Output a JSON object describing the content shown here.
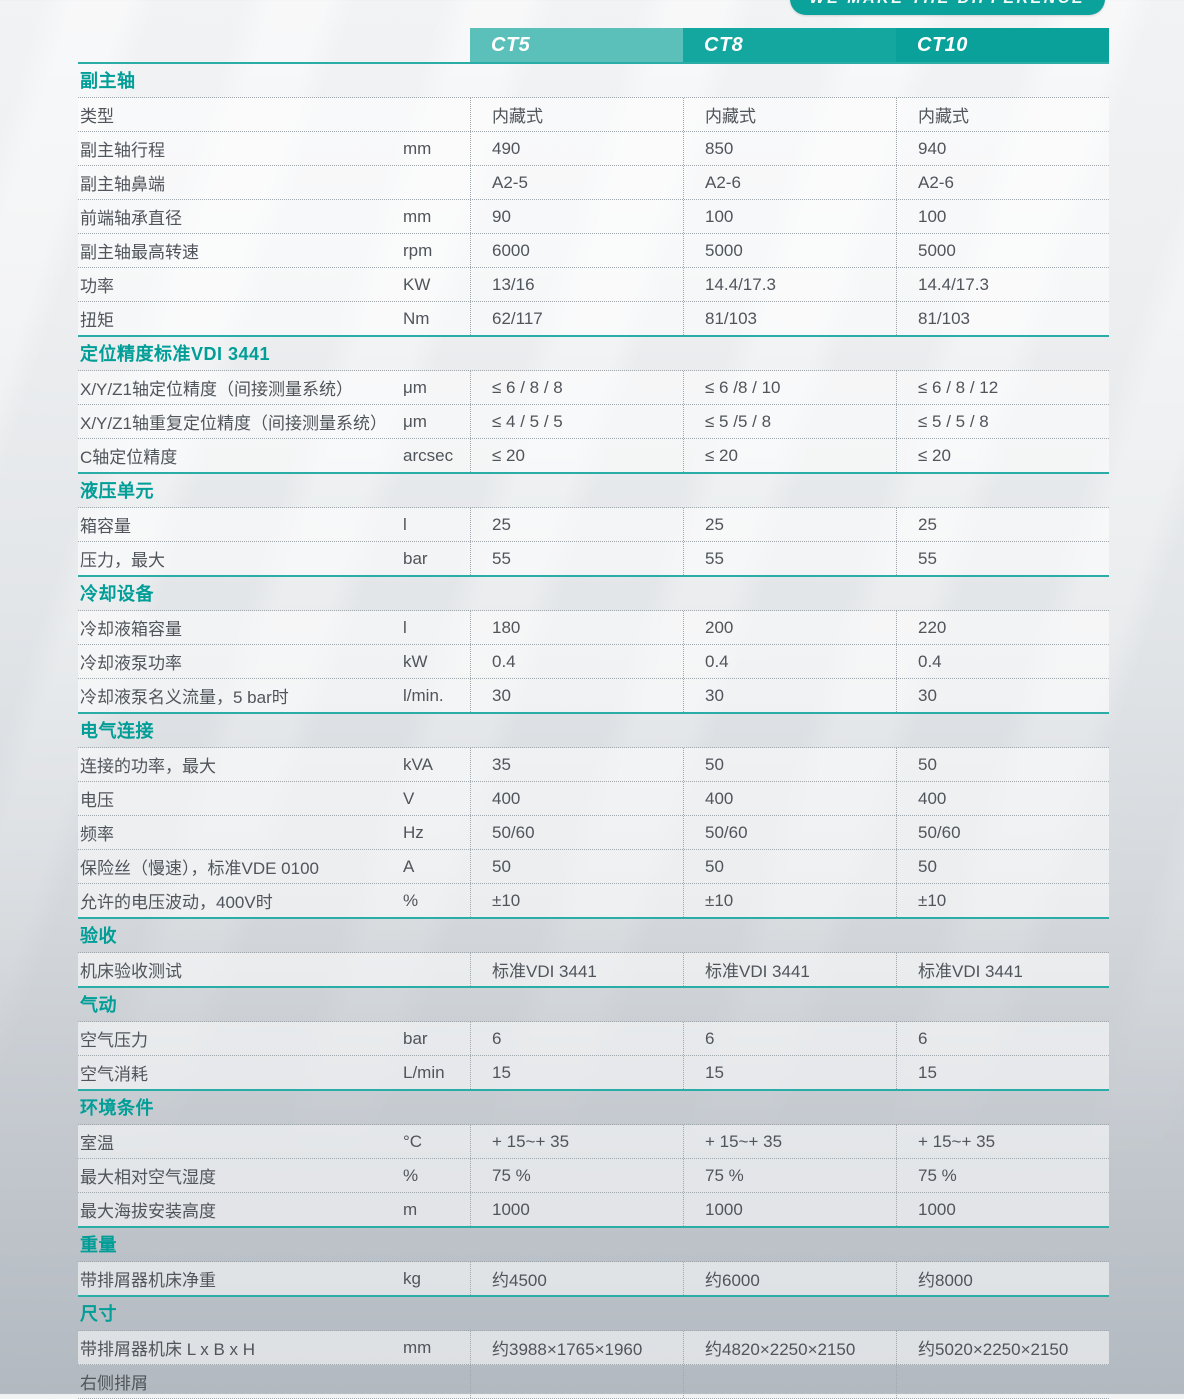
{
  "badge": {
    "label": "WE MAKE THE DIFFERENCE"
  },
  "columns": [
    "CT5",
    "CT8",
    "CT10"
  ],
  "colors": {
    "accent_teal": "#09a19a",
    "accent_teal_light": "#5bc0b9",
    "section_line": "#2aada6",
    "title_text": "#009e97",
    "body_text": "#50555b"
  },
  "sections": [
    {
      "title": "副主轴",
      "rows": [
        {
          "label": "类型",
          "unit": "",
          "values": [
            "内藏式",
            "内藏式",
            "内藏式"
          ]
        },
        {
          "label": "副主轴行程",
          "unit": "mm",
          "values": [
            "490",
            "850",
            "940"
          ]
        },
        {
          "label": "副主轴鼻端",
          "unit": "",
          "values": [
            "A2-5",
            "A2-6",
            "A2-6"
          ]
        },
        {
          "label": "前端轴承直径",
          "unit": "mm",
          "values": [
            "90",
            "100",
            "100"
          ]
        },
        {
          "label": "副主轴最高转速",
          "unit": "rpm",
          "values": [
            "6000",
            "5000",
            "5000"
          ]
        },
        {
          "label": "功率",
          "unit": "KW",
          "values": [
            "13/16",
            "14.4/17.3",
            "14.4/17.3"
          ]
        },
        {
          "label": "扭矩",
          "unit": "Nm",
          "values": [
            "62/117",
            "81/103",
            "81/103"
          ]
        }
      ]
    },
    {
      "title": "定位精度标准VDI 3441",
      "rows": [
        {
          "label": "X/Y/Z1轴定位精度（间接测量系统）",
          "unit": "μm",
          "values": [
            "≤ 6 / 8 / 8",
            "≤ 6 /8 / 10",
            "≤ 6 / 8 / 12"
          ]
        },
        {
          "label": "X/Y/Z1轴重复定位精度（间接测量系统）",
          "unit": "μm",
          "values": [
            "≤ 4 / 5 / 5",
            "≤ 5 /5 / 8",
            "≤ 5 / 5 / 8"
          ]
        },
        {
          "label": "C轴定位精度",
          "unit": "arcsec",
          "values": [
            "≤ 20",
            "≤ 20",
            "≤ 20"
          ]
        }
      ]
    },
    {
      "title": "液压单元",
      "rows": [
        {
          "label": "箱容量",
          "unit": "l",
          "values": [
            "25",
            "25",
            "25"
          ]
        },
        {
          "label": "压力，最大",
          "unit": "bar",
          "values": [
            "55",
            "55",
            "55"
          ]
        }
      ]
    },
    {
      "title": "冷却设备",
      "rows": [
        {
          "label": "冷却液箱容量",
          "unit": "l",
          "values": [
            "180",
            "200",
            "220"
          ]
        },
        {
          "label": "冷却液泵功率",
          "unit": "kW",
          "values": [
            "0.4",
            "0.4",
            "0.4"
          ]
        },
        {
          "label": "冷却液泵名义流量，5 bar时",
          "unit": "l/min.",
          "values": [
            "30",
            "30",
            "30"
          ]
        }
      ]
    },
    {
      "title": "电气连接",
      "rows": [
        {
          "label": "连接的功率，最大",
          "unit": "kVA",
          "values": [
            "35",
            "50",
            "50"
          ]
        },
        {
          "label": "电压",
          "unit": "V",
          "values": [
            "400",
            "400",
            "400"
          ]
        },
        {
          "label": "频率",
          "unit": "Hz",
          "values": [
            "50/60",
            "50/60",
            "50/60"
          ]
        },
        {
          "label": "保险丝（慢速），标准VDE 0100",
          "unit": "A",
          "values": [
            "50",
            "50",
            "50"
          ]
        },
        {
          "label": "允许的电压波动，400V时",
          "unit": "%",
          "values": [
            "±10",
            "±10",
            "±10"
          ]
        }
      ]
    },
    {
      "title": "验收",
      "rows": [
        {
          "label": "机床验收测试",
          "unit": "",
          "values": [
            "标准VDI 3441",
            "标准VDI 3441",
            "标准VDI 3441"
          ]
        }
      ]
    },
    {
      "title": "气动",
      "rows": [
        {
          "label": "空气压力",
          "unit": "bar",
          "values": [
            "6",
            "6",
            "6"
          ]
        },
        {
          "label": "空气消耗",
          "unit": "L/min",
          "values": [
            "15",
            "15",
            "15"
          ]
        }
      ]
    },
    {
      "title": "环境条件",
      "rows": [
        {
          "label": "室温",
          "unit": "°C",
          "values": [
            "+ 15~+ 35",
            "+ 15~+ 35",
            "+ 15~+ 35"
          ]
        },
        {
          "label": "最大相对空气湿度",
          "unit": "%",
          "values": [
            "75 %",
            "75 %",
            "75 %"
          ]
        },
        {
          "label": "最大海拔安装高度",
          "unit": "m",
          "values": [
            "1000",
            "1000",
            "1000"
          ]
        }
      ]
    },
    {
      "title": "重量",
      "rows": [
        {
          "label": "带排屑器机床净重",
          "unit": "kg",
          "values": [
            "约4500",
            "约6000",
            "约8000"
          ]
        }
      ]
    },
    {
      "title": "尺寸",
      "rows": [
        {
          "label": "带排屑器机床 L x B x H",
          "unit": "mm",
          "values": [
            "约3988×1765×1960",
            "约4820×2250×2150",
            "约5020×2250×2150"
          ]
        },
        {
          "label": "右侧排屑",
          "unit": "",
          "values": [
            "",
            "",
            ""
          ],
          "plain": true
        }
      ]
    }
  ]
}
